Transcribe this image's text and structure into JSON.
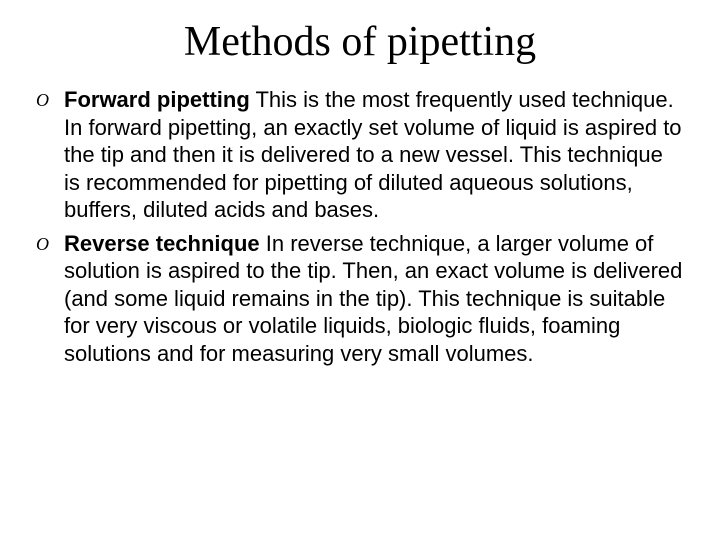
{
  "slide": {
    "title": "Methods of pipetting",
    "title_fontsize": 42,
    "title_font_family": "serif",
    "title_color": "#000000",
    "background_color": "#ffffff",
    "body_fontsize": 22,
    "body_color": "#000000",
    "bullet_marker": "O",
    "bullet_marker_color": "#000000",
    "bullets": [
      {
        "bold": "Forward pipetting",
        "rest": " This is the most frequently used technique. In forward pipetting, an exactly set volume of liquid is aspired to the tip and then it is delivered to a new vessel. This technique is recommended for pipetting of diluted aqueous solutions, buffers, diluted acids and bases."
      },
      {
        "bold": "Reverse technique",
        "rest": " In reverse technique, a larger volume of solution is aspired to the tip. Then, an exact volume is delivered (and some liquid remains in the tip). This technique is suitable for very viscous or volatile liquids, biologic fluids, foaming solutions and for measuring very small volumes."
      }
    ]
  }
}
